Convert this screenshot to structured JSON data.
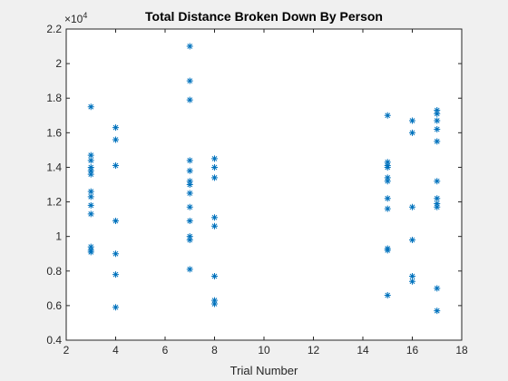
{
  "chart_data": {
    "type": "scatter",
    "title": "Total Distance Broken Down By Person",
    "xlabel": "Trial Number",
    "ylabel": "",
    "xlim": [
      2,
      18
    ],
    "ylim": [
      4000,
      22000
    ],
    "xticks": [
      2,
      4,
      6,
      8,
      10,
      12,
      14,
      16,
      18
    ],
    "xtick_labels": [
      "2",
      "4",
      "6",
      "8",
      "10",
      "12",
      "14",
      "16",
      "18"
    ],
    "yticks": [
      4000,
      6000,
      8000,
      10000,
      12000,
      14000,
      16000,
      18000,
      20000,
      22000
    ],
    "ytick_labels": [
      "0.4",
      "0.6",
      "0.8",
      "1",
      "1.2",
      "1.4",
      "1.6",
      "1.8",
      "2",
      "2.2"
    ],
    "y_exponent_base": "×10",
    "y_exponent_power": "4",
    "marker": "asterisk",
    "grid": false,
    "color": "#0072bd",
    "series": [
      {
        "points": [
          {
            "x": 3,
            "y": 17500
          },
          {
            "x": 3,
            "y": 14700
          },
          {
            "x": 3,
            "y": 14400
          },
          {
            "x": 3,
            "y": 14000
          },
          {
            "x": 3,
            "y": 13800
          },
          {
            "x": 3,
            "y": 13600
          },
          {
            "x": 3,
            "y": 12600
          },
          {
            "x": 3,
            "y": 12300
          },
          {
            "x": 3,
            "y": 11800
          },
          {
            "x": 3,
            "y": 11300
          },
          {
            "x": 3,
            "y": 9400
          },
          {
            "x": 3,
            "y": 9200
          },
          {
            "x": 3,
            "y": 9100
          },
          {
            "x": 4,
            "y": 16300
          },
          {
            "x": 4,
            "y": 15600
          },
          {
            "x": 4,
            "y": 14100
          },
          {
            "x": 4,
            "y": 10900
          },
          {
            "x": 4,
            "y": 9000
          },
          {
            "x": 4,
            "y": 7800
          },
          {
            "x": 4,
            "y": 5900
          },
          {
            "x": 7,
            "y": 21000
          },
          {
            "x": 7,
            "y": 19000
          },
          {
            "x": 7,
            "y": 17900
          },
          {
            "x": 7,
            "y": 14400
          },
          {
            "x": 7,
            "y": 13800
          },
          {
            "x": 7,
            "y": 13200
          },
          {
            "x": 7,
            "y": 13000
          },
          {
            "x": 7,
            "y": 12500
          },
          {
            "x": 7,
            "y": 11700
          },
          {
            "x": 7,
            "y": 10900
          },
          {
            "x": 7,
            "y": 10000
          },
          {
            "x": 7,
            "y": 9800
          },
          {
            "x": 7,
            "y": 8100
          },
          {
            "x": 8,
            "y": 14500
          },
          {
            "x": 8,
            "y": 14000
          },
          {
            "x": 8,
            "y": 13400
          },
          {
            "x": 8,
            "y": 11100
          },
          {
            "x": 8,
            "y": 10600
          },
          {
            "x": 8,
            "y": 7700
          },
          {
            "x": 8,
            "y": 6300
          },
          {
            "x": 8,
            "y": 6100
          },
          {
            "x": 15,
            "y": 17000
          },
          {
            "x": 15,
            "y": 14300
          },
          {
            "x": 15,
            "y": 14100
          },
          {
            "x": 15,
            "y": 14000
          },
          {
            "x": 15,
            "y": 13400
          },
          {
            "x": 15,
            "y": 13200
          },
          {
            "x": 15,
            "y": 12200
          },
          {
            "x": 15,
            "y": 11600
          },
          {
            "x": 15,
            "y": 9300
          },
          {
            "x": 15,
            "y": 9200
          },
          {
            "x": 15,
            "y": 6600
          },
          {
            "x": 16,
            "y": 16700
          },
          {
            "x": 16,
            "y": 16000
          },
          {
            "x": 16,
            "y": 11700
          },
          {
            "x": 16,
            "y": 9800
          },
          {
            "x": 16,
            "y": 7700
          },
          {
            "x": 16,
            "y": 7400
          },
          {
            "x": 17,
            "y": 17300
          },
          {
            "x": 17,
            "y": 17100
          },
          {
            "x": 17,
            "y": 16700
          },
          {
            "x": 17,
            "y": 16200
          },
          {
            "x": 17,
            "y": 15500
          },
          {
            "x": 17,
            "y": 13200
          },
          {
            "x": 17,
            "y": 12200
          },
          {
            "x": 17,
            "y": 11900
          },
          {
            "x": 17,
            "y": 11700
          },
          {
            "x": 17,
            "y": 7000
          },
          {
            "x": 17,
            "y": 5700
          }
        ]
      }
    ]
  }
}
